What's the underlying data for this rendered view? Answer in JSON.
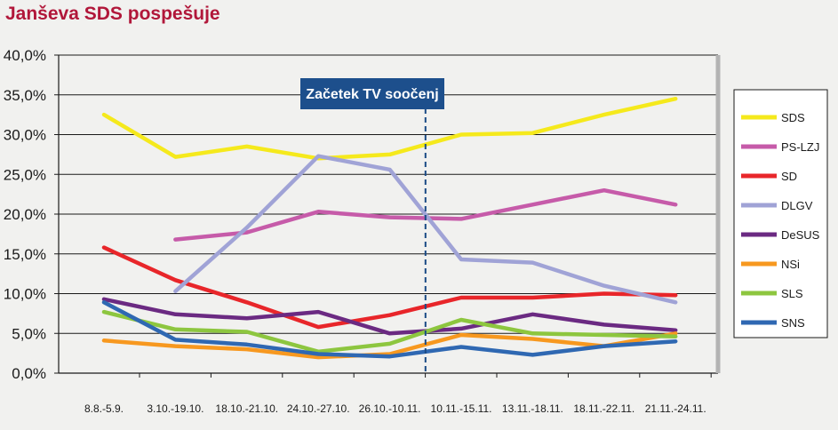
{
  "page": {
    "title": "Janševa SDS pospešuje"
  },
  "chart_data": {
    "type": "line",
    "title": "Janševa SDS pospešuje",
    "categories": [
      "8.8.-5.9.",
      "3.10.-19.10.",
      "18.10.-21.10.",
      "24.10.-27.10.",
      "26.10.-10.11.",
      "10.11.-15.11.",
      "13.11.-18.11.",
      "18.11.-22.11.",
      "21.11.-24.11."
    ],
    "y_ticks": [
      "0,0%",
      "5,0%",
      "10,0%",
      "15,0%",
      "20,0%",
      "25,0%",
      "30,0%",
      "35,0%",
      "40,0%"
    ],
    "ylim": [
      0,
      40
    ],
    "grid": true,
    "legend_position": "right",
    "annotation": {
      "label": "Začetek TV soočenj",
      "between_categories": [
        "26.10.-10.11.",
        "10.11.-15.11."
      ],
      "line_color": "#1a4a85",
      "box_color": "#1d4f8c"
    },
    "series": [
      {
        "name": "SDS",
        "color": "#f5e91c",
        "values": [
          32.5,
          27.2,
          28.5,
          27.0,
          27.5,
          30.0,
          30.2,
          32.5,
          34.5
        ]
      },
      {
        "name": "PS-LZJ",
        "color": "#c65ba9",
        "values": [
          null,
          16.8,
          17.7,
          20.3,
          19.6,
          19.4,
          21.2,
          23.0,
          21.2
        ]
      },
      {
        "name": "SD",
        "color": "#e8262a",
        "values": [
          15.8,
          11.7,
          8.9,
          5.8,
          7.3,
          9.5,
          9.5,
          10.0,
          9.8
        ]
      },
      {
        "name": "DLGV",
        "color": "#a0a3d6",
        "values": [
          null,
          10.3,
          18.3,
          27.3,
          25.6,
          14.3,
          13.9,
          11.0,
          8.9
        ]
      },
      {
        "name": "DeSUS",
        "color": "#6b2a82",
        "values": [
          9.3,
          7.4,
          6.9,
          7.7,
          5.0,
          5.6,
          7.4,
          6.1,
          5.4
        ]
      },
      {
        "name": "NSi",
        "color": "#f7981f",
        "values": [
          4.1,
          3.4,
          3.0,
          2.0,
          2.4,
          4.8,
          4.3,
          3.4,
          5.0
        ]
      },
      {
        "name": "SLS",
        "color": "#8dc63f",
        "values": [
          7.7,
          5.5,
          5.2,
          2.7,
          3.7,
          6.7,
          5.0,
          4.8,
          4.6
        ]
      },
      {
        "name": "SNS",
        "color": "#2f68b2",
        "values": [
          8.9,
          4.2,
          3.6,
          2.4,
          2.1,
          3.3,
          2.3,
          3.4,
          4.0
        ]
      }
    ]
  }
}
